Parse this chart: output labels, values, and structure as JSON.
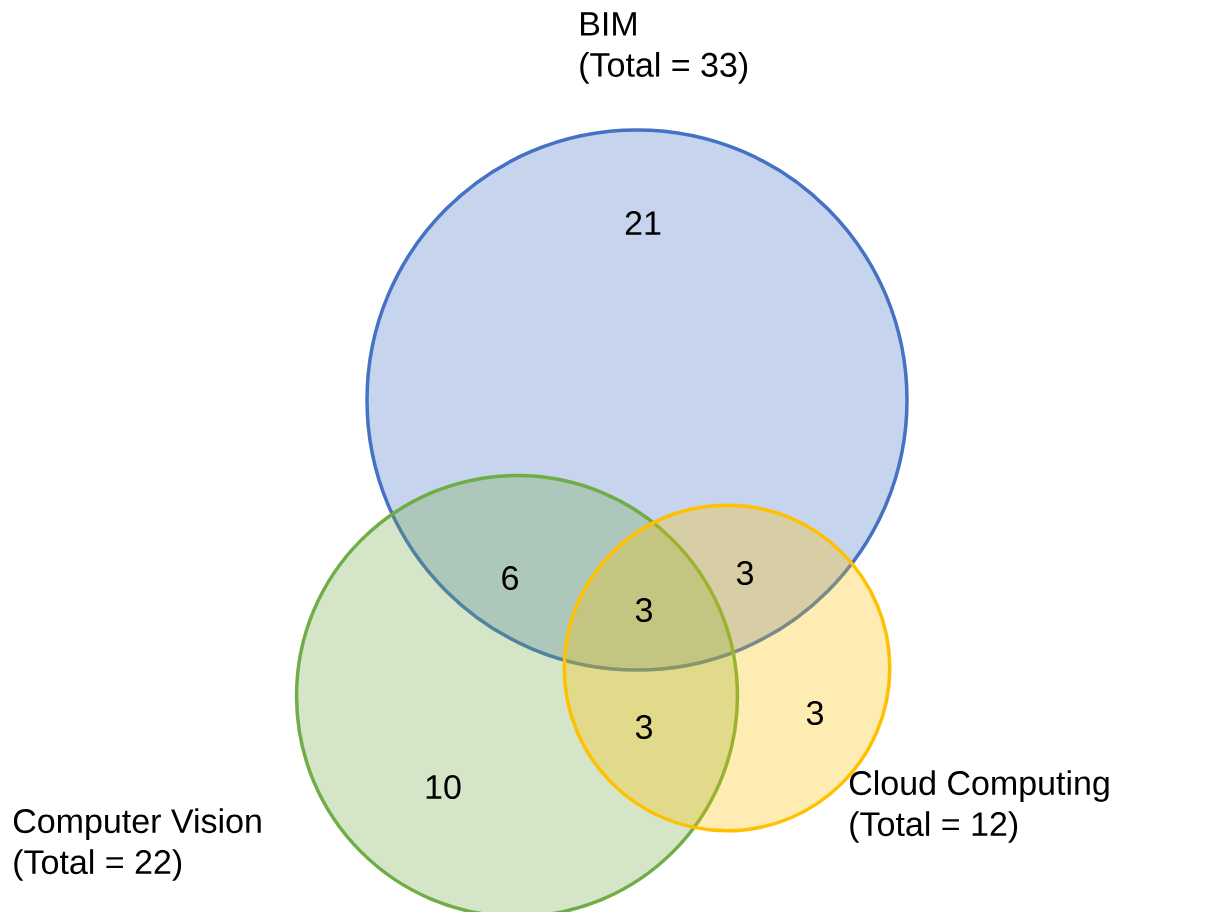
{
  "chart_data": {
    "type": "other",
    "categories": [
      "BIM",
      "Computer Vision",
      "Cloud Computing"
    ],
    "values": [
      33,
      22,
      12
    ],
    "value_labels": [
      "(Total = 33)",
      "(Total = 22)",
      "(Total = 12)"
    ],
    "colors": [
      "#4472c4",
      "#70ad47",
      "#ffc000"
    ],
    "annotations": [
      "21",
      "6",
      "3",
      "3",
      "3",
      "3",
      "10"
    ]
  }
}
